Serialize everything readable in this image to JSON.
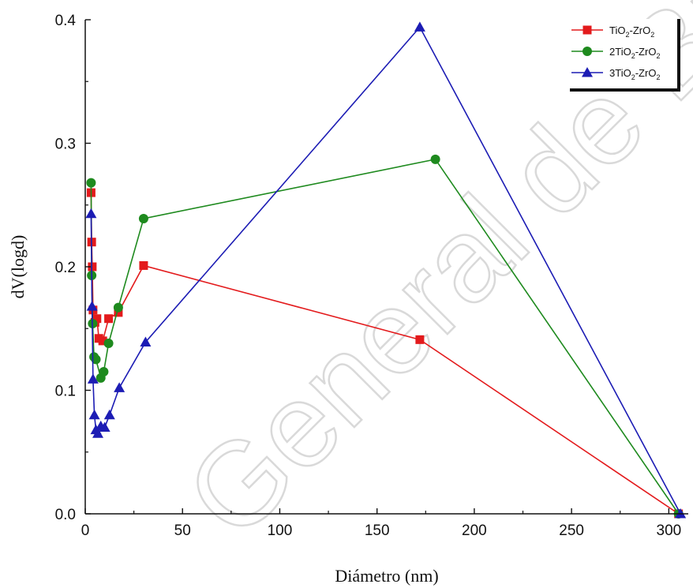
{
  "chart_data": {
    "type": "line",
    "xlabel": "Diámetro (nm)",
    "ylabel": "dV(logd)",
    "xlim": [
      0,
      310
    ],
    "ylim": [
      0,
      0.4
    ],
    "xticks": [
      "0",
      "50",
      "100",
      "150",
      "200",
      "250",
      "300"
    ],
    "yticks": [
      "0.0",
      "0.1",
      "0.2",
      "0.3",
      "0.4"
    ],
    "legend_position": "top-right",
    "watermark": "General de Biblioteca",
    "series": [
      {
        "name": "TiO2-ZrO2",
        "legend_parts": [
          "TiO",
          "2",
          "-ZrO",
          "2"
        ],
        "color": "#e31a1c",
        "marker": "square",
        "x": [
          3,
          3.3,
          3.6,
          4,
          5,
          6,
          7,
          9,
          12,
          17,
          30,
          172,
          305
        ],
        "y": [
          0.26,
          0.22,
          0.2,
          0.165,
          0.155,
          0.158,
          0.142,
          0.14,
          0.158,
          0.163,
          0.201,
          0.141,
          0
        ]
      },
      {
        "name": "2TiO2-ZrO2",
        "legend_parts": [
          "2TiO",
          "2",
          "-ZrO",
          "2"
        ],
        "color": "#1e8a1e",
        "marker": "circle",
        "x": [
          3,
          3.3,
          3.8,
          4.5,
          5.5,
          8,
          9.5,
          12,
          17,
          30,
          180,
          305
        ],
        "y": [
          0.268,
          0.193,
          0.154,
          0.127,
          0.125,
          0.11,
          0.115,
          0.138,
          0.167,
          0.239,
          0.287,
          0
        ]
      },
      {
        "name": "3TiO2-ZrO2",
        "legend_parts": [
          "3TiO",
          "2",
          "-ZrO",
          "2"
        ],
        "color": "#1c1cb4",
        "marker": "triangle",
        "x": [
          3,
          3.5,
          4,
          4.7,
          5.5,
          6.5,
          8,
          10,
          12.5,
          17.5,
          31,
          172,
          306
        ],
        "y": [
          0.243,
          0.168,
          0.109,
          0.08,
          0.068,
          0.065,
          0.071,
          0.07,
          0.08,
          0.102,
          0.139,
          0.394,
          0
        ]
      }
    ]
  }
}
